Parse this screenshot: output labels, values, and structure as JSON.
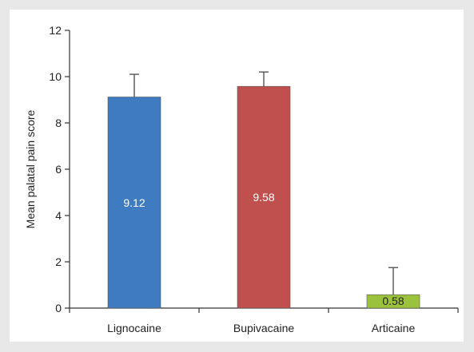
{
  "chart_data": {
    "type": "bar",
    "title": "",
    "xlabel": "",
    "ylabel": "Mean palatal pain score",
    "categories": [
      "Lignocaine",
      "Bupivacaine",
      "Articaine"
    ],
    "values": [
      9.12,
      9.58,
      0.58
    ],
    "error_upper": [
      10.1,
      10.2,
      1.75
    ],
    "data_labels": [
      "9.12",
      "9.58",
      "0.58"
    ],
    "colors": [
      "#3f7bc1",
      "#c0504d",
      "#9bc23c"
    ],
    "label_colors": [
      "#ffffff",
      "#ffffff",
      "#222222"
    ],
    "ylim": [
      0,
      12
    ],
    "yticks": [
      0,
      2,
      4,
      6,
      8,
      10,
      12
    ],
    "grid": false,
    "legend": "none"
  }
}
